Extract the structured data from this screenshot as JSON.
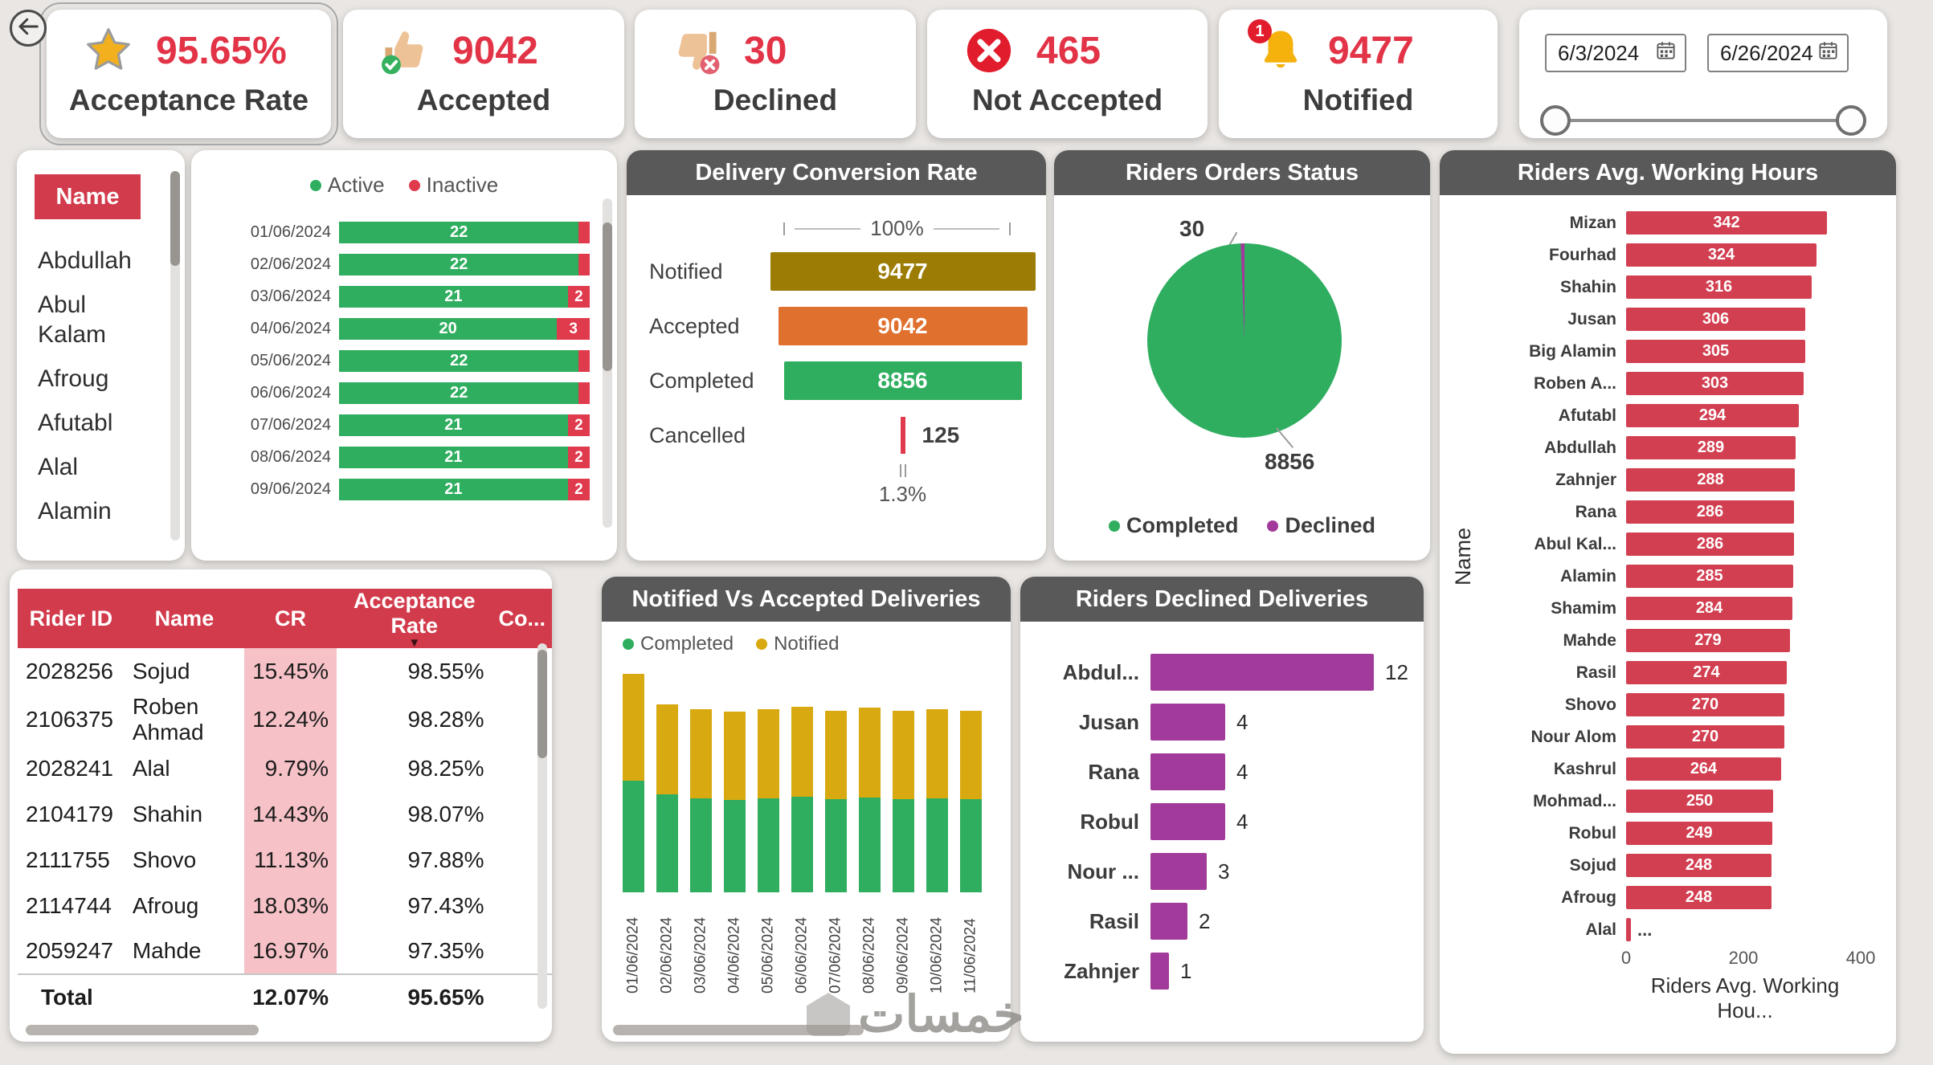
{
  "kpi_cards": [
    {
      "label": "Acceptance Rate",
      "value": "95.65%",
      "icon": "star-icon"
    },
    {
      "label": "Accepted",
      "value": "9042",
      "icon": "thumbs-up-icon"
    },
    {
      "label": "Declined",
      "value": "30",
      "icon": "thumbs-down-icon"
    },
    {
      "label": "Not Accepted",
      "value": "465",
      "icon": "x-circle-icon"
    },
    {
      "label": "Notified",
      "value": "9477",
      "icon": "bell-icon",
      "badge": "1"
    }
  ],
  "date_filter": {
    "start_date": "6/3/2024",
    "end_date": "6/26/2024"
  },
  "name_slicer": {
    "header": "Name",
    "items": [
      "Abdullah",
      "Abul Kalam",
      "Afroug",
      "Afutabl",
      "Alal",
      "Alamin"
    ]
  },
  "table": {
    "headers": [
      "Rider ID",
      "Name",
      "CR",
      "Acceptance Rate",
      "Co..."
    ],
    "sorted_by": "Acceptance Rate",
    "rows": [
      {
        "rider_id": "2028256",
        "name": "Sojud",
        "cr": "15.45%",
        "acceptance_rate": "98.55%"
      },
      {
        "rider_id": "2106375",
        "name": "Roben Ahmad",
        "cr": "12.24%",
        "acceptance_rate": "98.28%"
      },
      {
        "rider_id": "2028241",
        "name": "Alal",
        "cr": "9.79%",
        "acceptance_rate": "98.25%"
      },
      {
        "rider_id": "2104179",
        "name": "Shahin",
        "cr": "14.43%",
        "acceptance_rate": "98.07%"
      },
      {
        "rider_id": "2111755",
        "name": "Shovo",
        "cr": "11.13%",
        "acceptance_rate": "97.88%"
      },
      {
        "rider_id": "2114744",
        "name": "Afroug",
        "cr": "18.03%",
        "acceptance_rate": "97.43%"
      },
      {
        "rider_id": "2059247",
        "name": "Mahde",
        "cr": "16.97%",
        "acceptance_rate": "97.35%"
      }
    ],
    "total": {
      "label": "Total",
      "cr": "12.07%",
      "acceptance_rate": "95.65%"
    }
  },
  "chart_data": [
    {
      "id": "riders_active_inactive",
      "type": "bar",
      "orientation": "horizontal",
      "stacked": true,
      "legend_position": "top",
      "categories": [
        "01/06/2024",
        "02/06/2024",
        "03/06/2024",
        "04/06/2024",
        "05/06/2024",
        "06/06/2024",
        "07/06/2024",
        "08/06/2024",
        "09/06/2024"
      ],
      "series": [
        {
          "name": "Active",
          "color": "#2fae60",
          "values": [
            22,
            22,
            21,
            20,
            22,
            22,
            21,
            21,
            21
          ]
        },
        {
          "name": "Inactive",
          "color": "#e03a4d",
          "values": [
            1,
            1,
            2,
            3,
            1,
            1,
            2,
            2,
            2
          ]
        }
      ]
    },
    {
      "id": "delivery_conversion_rate",
      "type": "bar",
      "subtype": "funnel",
      "title": "Delivery Conversion Rate",
      "top_label": "100%",
      "bottom_label": "1.3%",
      "stages": [
        {
          "label": "Notified",
          "value": "9477",
          "color": "#9c7c04"
        },
        {
          "label": "Accepted",
          "value": "9042",
          "color": "#e0702e"
        },
        {
          "label": "Completed",
          "value": "8856",
          "color": "#2fae60"
        },
        {
          "label": "Cancelled",
          "value": "125",
          "color": "#e03a4d"
        }
      ]
    },
    {
      "id": "riders_orders_status",
      "type": "pie",
      "title": "Riders Orders Status",
      "legend_position": "bottom",
      "slices": [
        {
          "label": "Completed",
          "value": 8856,
          "color": "#2fae60"
        },
        {
          "label": "Declined",
          "value": 30,
          "color": "#a23a9b"
        }
      ]
    },
    {
      "id": "riders_avg_working_hours",
      "type": "bar",
      "orientation": "horizontal",
      "title": "Riders Avg. Working Hours",
      "x_axis_title": "Riders Avg. Working Hou...",
      "y_axis_title": "Name",
      "x_ticks": [
        "0",
        "200",
        "400"
      ],
      "xlim": [
        0,
        460
      ],
      "bars": [
        {
          "name": "Mizan",
          "value": 342
        },
        {
          "name": "Fourhad",
          "value": 324
        },
        {
          "name": "Shahin",
          "value": 316
        },
        {
          "name": "Jusan",
          "value": 306
        },
        {
          "name": "Big Alamin",
          "value": 305
        },
        {
          "name": "Roben A...",
          "value": 303
        },
        {
          "name": "Afutabl",
          "value": 294
        },
        {
          "name": "Abdullah",
          "value": 289
        },
        {
          "name": "Zahnjer",
          "value": 288
        },
        {
          "name": "Rana",
          "value": 286
        },
        {
          "name": "Abul Kal...",
          "value": 286
        },
        {
          "name": "Alamin",
          "value": 285
        },
        {
          "name": "Shamim",
          "value": 284
        },
        {
          "name": "Mahde",
          "value": 279
        },
        {
          "name": "Rasil",
          "value": 274
        },
        {
          "name": "Shovo",
          "value": 270
        },
        {
          "name": "Nour Alom",
          "value": 270
        },
        {
          "name": "Kashrul",
          "value": 264
        },
        {
          "name": "Mohmad...",
          "value": 250
        },
        {
          "name": "Robul",
          "value": 249
        },
        {
          "name": "Sojud",
          "value": 248
        },
        {
          "name": "Afroug",
          "value": 248
        },
        {
          "name": "Alal",
          "value": 8,
          "label": "..."
        }
      ]
    },
    {
      "id": "notified_vs_accepted",
      "type": "bar",
      "stacked": true,
      "title": "Notified Vs Accepted Deliveries",
      "legend_position": "top",
      "categories": [
        "01/06/2024",
        "02/06/2024",
        "03/06/2024",
        "04/06/2024",
        "05/06/2024",
        "06/06/2024",
        "07/06/2024",
        "08/06/2024",
        "09/06/2024",
        "10/06/2024",
        "11/06/2024"
      ],
      "series": [
        {
          "name": "Completed",
          "color": "#2fae60",
          "values": [
            440,
            385,
            368,
            363,
            370,
            374,
            366,
            372,
            365,
            369,
            366
          ]
        },
        {
          "name": "Notified",
          "color": "#d9a911",
          "values": [
            420,
            352,
            350,
            346,
            350,
            354,
            348,
            352,
            347,
            350,
            347
          ]
        }
      ]
    },
    {
      "id": "riders_declined_deliveries",
      "type": "bar",
      "orientation": "horizontal",
      "title": "Riders Declined Deliveries",
      "bars": [
        {
          "name": "Abdul...",
          "value": 12
        },
        {
          "name": "Jusan",
          "value": 4
        },
        {
          "name": "Rana",
          "value": 4
        },
        {
          "name": "Robul",
          "value": 4
        },
        {
          "name": "Nour ...",
          "value": 3
        },
        {
          "name": "Rasil",
          "value": 2
        },
        {
          "name": "Zahnjer",
          "value": 1
        }
      ]
    }
  ],
  "watermark": "خمسات"
}
